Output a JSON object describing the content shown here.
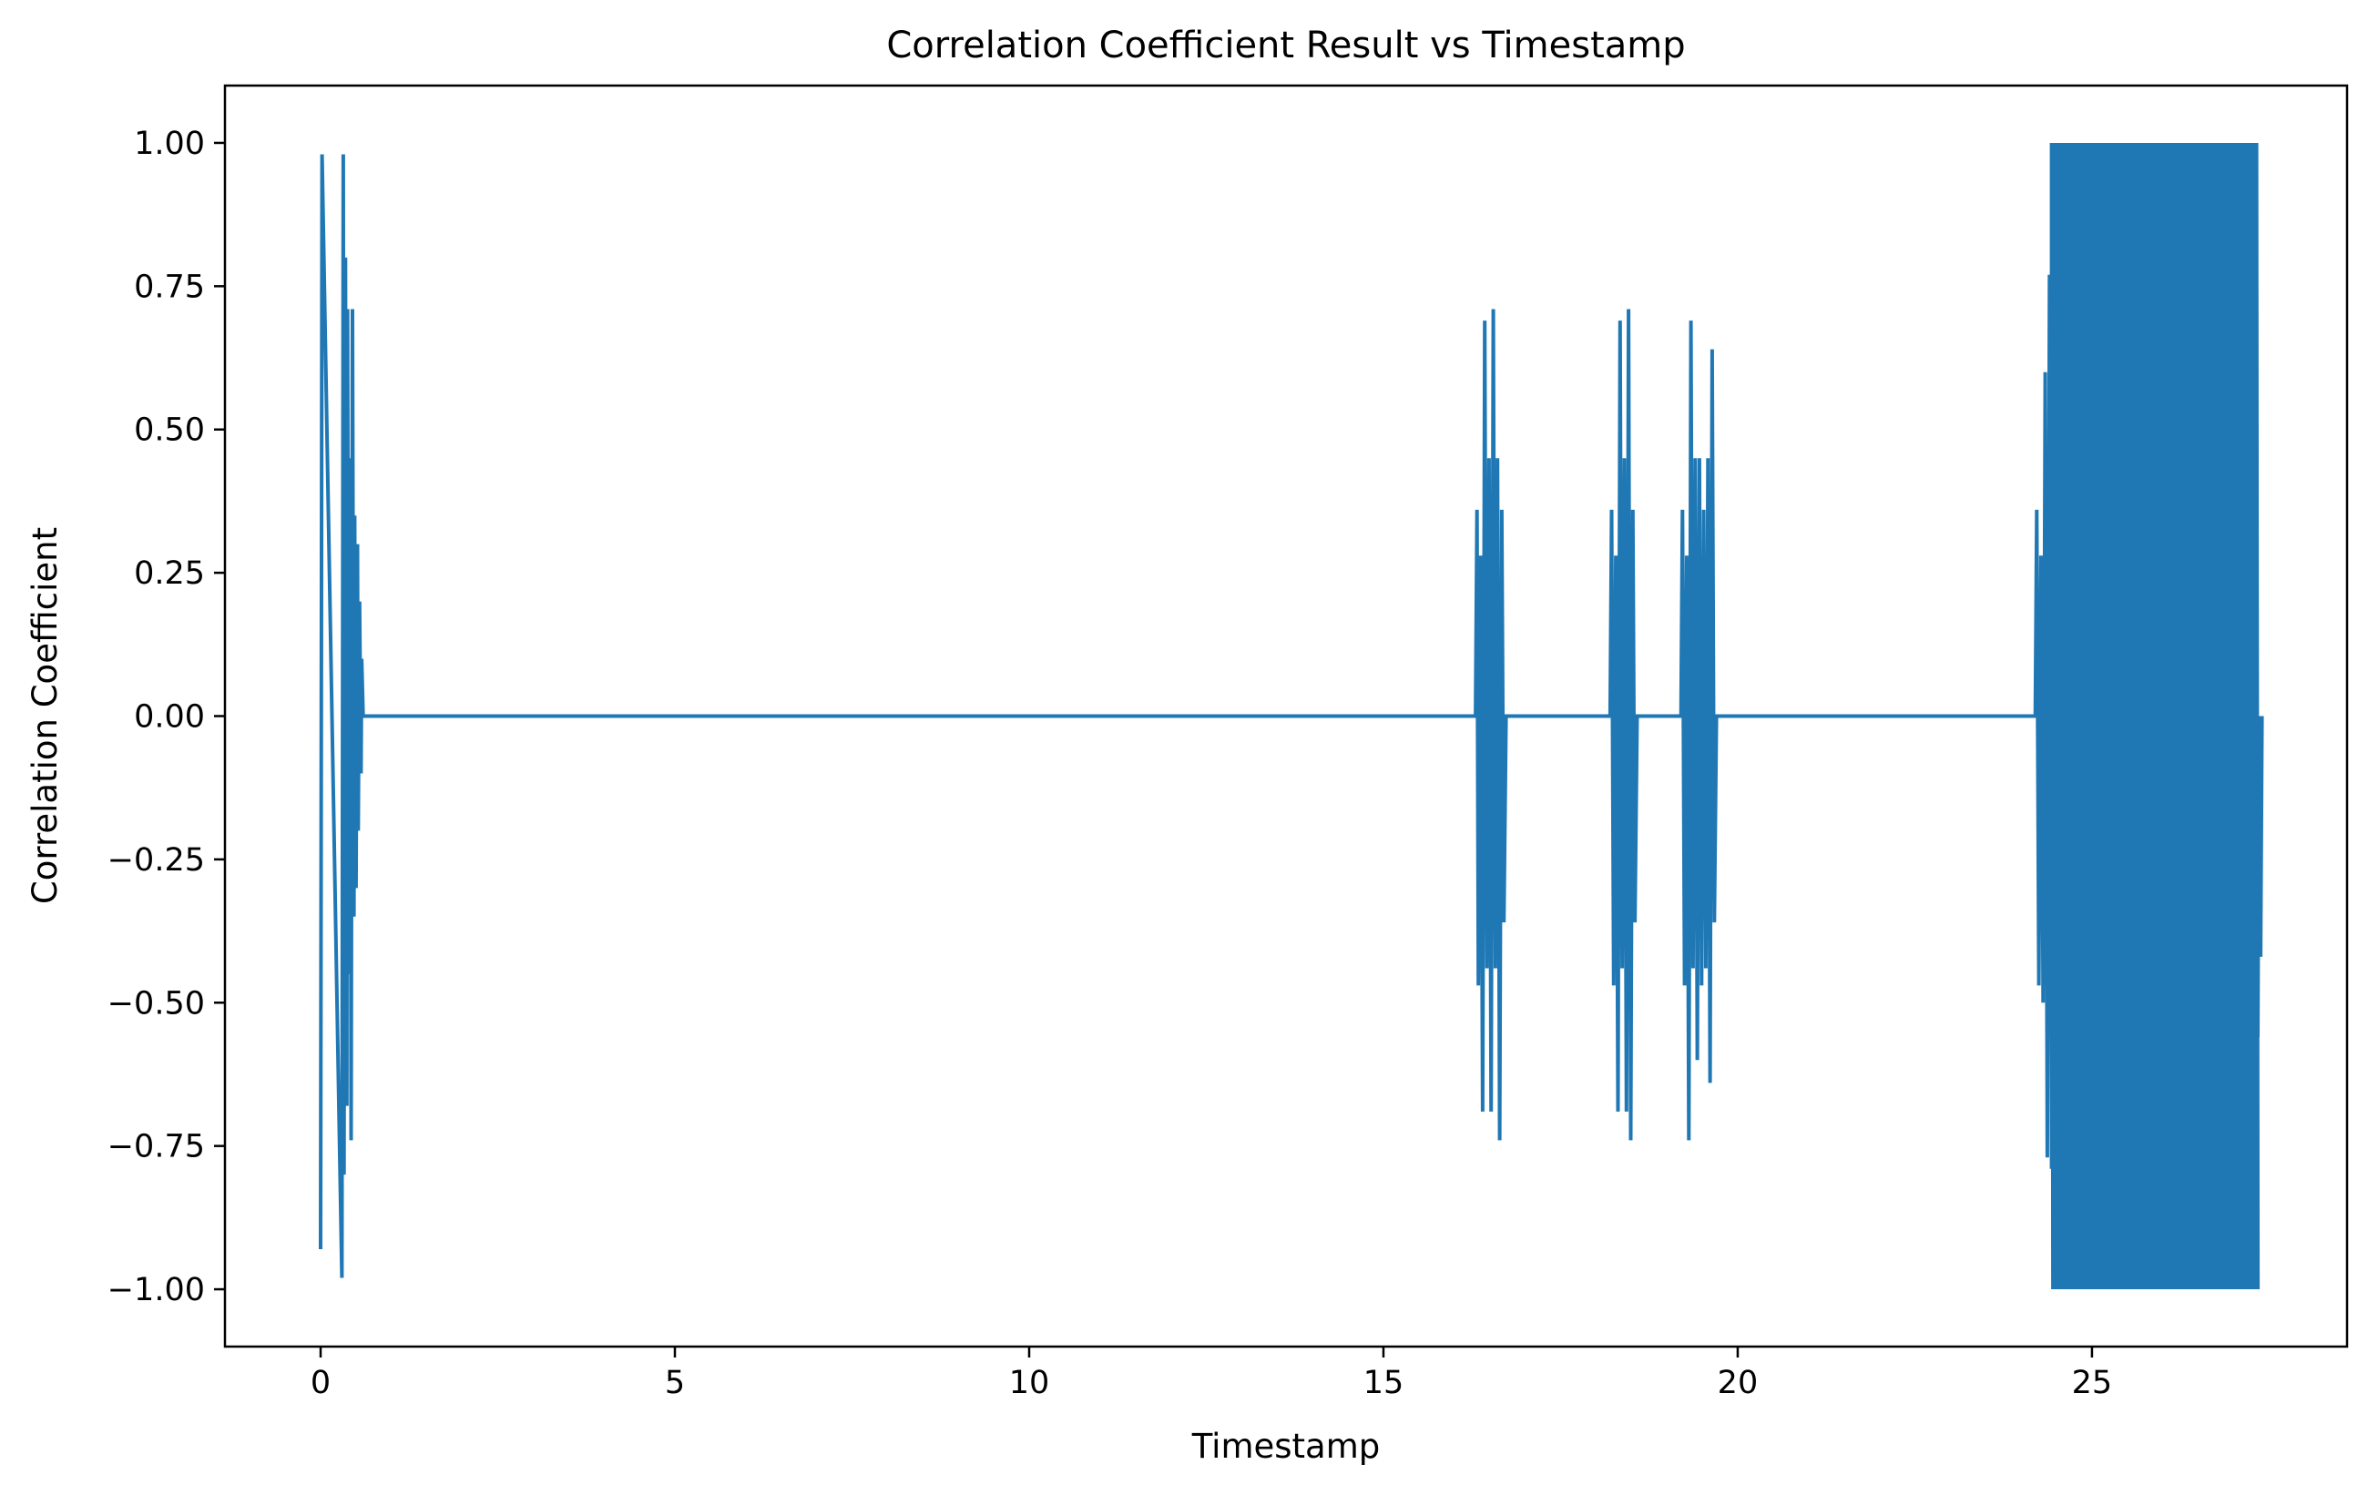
{
  "chart_data": {
    "type": "line",
    "title": "Correlation Coefficient Result vs Timestamp",
    "xlabel": "Timestamp",
    "ylabel": "Correlation Coefficient",
    "xlim": [
      -1.35,
      28.6
    ],
    "ylim": [
      -1.1,
      1.1
    ],
    "xticks": [
      0,
      5,
      10,
      15,
      20,
      25
    ],
    "xtick_labels": [
      "0",
      "5",
      "10",
      "15",
      "20",
      "25"
    ],
    "yticks": [
      1.0,
      0.75,
      0.5,
      0.25,
      0.0,
      -0.25,
      -0.5,
      -0.75,
      -1.0
    ],
    "ytick_labels": [
      "1.00",
      "0.75",
      "0.50",
      "0.25",
      "0.00",
      "−0.25",
      "−0.50",
      "−0.75",
      "−1.00"
    ],
    "grid": false,
    "legend": "none",
    "color": "#1f77b4",
    "series": [
      {
        "x": [
          0.0,
          0.02,
          0.3,
          0.32,
          0.33,
          0.35,
          0.37,
          0.38,
          0.4,
          0.42,
          0.43,
          0.45,
          0.47,
          0.48,
          0.5,
          0.52,
          0.53,
          0.55,
          0.57,
          0.58,
          0.6,
          0.62,
          0.65,
          16.3,
          16.32,
          16.34,
          16.37,
          16.4,
          16.43,
          16.46,
          16.49,
          16.52,
          16.55,
          16.58,
          16.61,
          16.64,
          16.67,
          16.7,
          16.73,
          18.2,
          18.22,
          18.25,
          18.28,
          18.31,
          18.34,
          18.37,
          18.4,
          18.43,
          18.46,
          18.49,
          18.52,
          18.55,
          18.58,
          19.2,
          19.22,
          19.25,
          19.28,
          19.31,
          19.34,
          19.37,
          19.4,
          19.43,
          19.46,
          19.49,
          19.52,
          19.55,
          19.58,
          19.61,
          19.64,
          19.67,
          19.7,
          24.2,
          24.22,
          24.25,
          24.28,
          24.31,
          24.34,
          24.37,
          24.4,
          24.43
        ],
        "y": [
          -0.93,
          0.98,
          -0.98,
          0.98,
          -0.8,
          0.8,
          -0.68,
          0.71,
          -0.45,
          0.45,
          -0.74,
          0.71,
          -0.35,
          0.35,
          -0.3,
          0.3,
          -0.2,
          0.2,
          -0.1,
          0.1,
          0.0,
          0.0,
          0.0,
          0.0,
          0.36,
          -0.47,
          0.28,
          -0.69,
          0.69,
          -0.44,
          0.45,
          -0.69,
          0.71,
          -0.44,
          0.45,
          -0.74,
          0.36,
          -0.36,
          0.0,
          0.0,
          0.36,
          -0.47,
          0.28,
          -0.69,
          0.69,
          -0.44,
          0.45,
          -0.69,
          0.71,
          -0.74,
          0.36,
          -0.36,
          0.0,
          0.0,
          0.36,
          -0.47,
          0.28,
          -0.74,
          0.69,
          -0.44,
          0.45,
          -0.6,
          0.45,
          -0.47,
          0.36,
          -0.44,
          0.45,
          -0.64,
          0.64,
          -0.36,
          0.0,
          0.0,
          0.36,
          -0.47,
          0.28,
          -0.5,
          0.6,
          -0.77,
          0.77,
          -0.79
        ]
      }
    ],
    "dense_band": {
      "x_start": 24.43,
      "x_end": 27.35,
      "ymin": -1.0,
      "ymax": 1.0,
      "tail_x": [
        27.28,
        27.3,
        27.32,
        27.34,
        27.36,
        27.38,
        27.4
      ],
      "tail_y": [
        0.36,
        -0.85,
        0.06,
        -0.56,
        0.0,
        -0.42,
        0.0
      ]
    }
  }
}
